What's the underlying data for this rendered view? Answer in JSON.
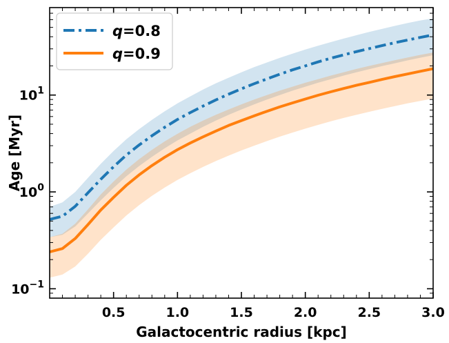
{
  "chart_data": {
    "type": "line",
    "title": "",
    "xlabel": "Galactocentric radius [kpc]",
    "ylabel": "Age [Myr]",
    "xlim": [
      0.0,
      3.0
    ],
    "ylim": [
      0.08,
      80
    ],
    "yscale": "log",
    "grid": false,
    "legend_position": "top-left",
    "x_ticks": [
      {
        "value": 0.5,
        "label": "0.5"
      },
      {
        "value": 1.0,
        "label": "1.0"
      },
      {
        "value": 1.5,
        "label": "1.5"
      },
      {
        "value": 2.0,
        "label": "2.0"
      },
      {
        "value": 2.5,
        "label": "2.5"
      },
      {
        "value": 3.0,
        "label": "3.0"
      }
    ],
    "y_ticks": [
      {
        "value": 0.1,
        "base": "10",
        "exp": "−1"
      },
      {
        "value": 1,
        "base": "10",
        "exp": "0"
      },
      {
        "value": 10,
        "base": "10",
        "exp": "1"
      }
    ],
    "x": [
      0.0,
      0.1,
      0.2,
      0.3,
      0.4,
      0.5,
      0.6,
      0.7,
      0.8,
      0.9,
      1.0,
      1.1,
      1.2,
      1.3,
      1.4,
      1.5,
      1.6,
      1.7,
      1.8,
      1.9,
      2.0,
      2.1,
      2.2,
      2.3,
      2.4,
      2.5,
      2.6,
      2.7,
      2.8,
      2.9,
      3.0
    ],
    "series": [
      {
        "name": "q=0.8",
        "q_symbol": "q",
        "q_value": "=0.8",
        "color": "#1f77b4",
        "band_color": "#1f77b4",
        "line_style": "dashdot",
        "values": [
          0.52,
          0.56,
          0.71,
          0.98,
          1.35,
          1.82,
          2.4,
          3.05,
          3.8,
          4.65,
          5.6,
          6.6,
          7.7,
          8.9,
          10.2,
          11.6,
          13.1,
          14.7,
          16.4,
          18.2,
          20.0,
          22.0,
          24.0,
          26.0,
          28.1,
          30.2,
          32.4,
          34.7,
          37.0,
          39.4,
          41.8
        ],
        "upper": [
          0.7,
          0.78,
          1.0,
          1.4,
          1.95,
          2.65,
          3.5,
          4.45,
          5.55,
          6.8,
          8.2,
          9.7,
          11.4,
          13.2,
          15.1,
          17.2,
          19.4,
          21.7,
          24.2,
          26.8,
          29.5,
          32.3,
          35.2,
          38.3,
          41.5,
          44.8,
          48.2,
          51.8,
          55.4,
          59.0,
          62.0
        ],
        "lower": [
          0.34,
          0.36,
          0.44,
          0.6,
          0.82,
          1.1,
          1.45,
          1.85,
          2.3,
          2.82,
          3.4,
          4.0,
          4.7,
          5.45,
          6.25,
          7.1,
          8.0,
          9.0,
          10.0,
          11.1,
          12.2,
          13.4,
          14.6,
          15.9,
          17.2,
          18.5,
          19.9,
          21.3,
          22.8,
          24.3,
          25.8
        ]
      },
      {
        "name": "q=0.9",
        "q_symbol": "q",
        "q_value": "=0.9",
        "color": "#ff7f0e",
        "band_color": "#ff7f0e",
        "line_style": "solid",
        "values": [
          0.24,
          0.26,
          0.33,
          0.46,
          0.65,
          0.88,
          1.17,
          1.5,
          1.87,
          2.28,
          2.73,
          3.2,
          3.7,
          4.25,
          4.85,
          5.45,
          6.1,
          6.8,
          7.55,
          8.3,
          9.1,
          9.95,
          10.8,
          11.7,
          12.6,
          13.5,
          14.5,
          15.5,
          16.5,
          17.6,
          18.7
        ],
        "upper": [
          0.34,
          0.37,
          0.47,
          0.66,
          0.94,
          1.28,
          1.7,
          2.18,
          2.72,
          3.32,
          3.98,
          4.7,
          5.45,
          6.25,
          7.1,
          8.0,
          9.0,
          10.0,
          11.1,
          12.2,
          13.4,
          14.6,
          15.9,
          17.2,
          18.6,
          20.0,
          21.4,
          22.9,
          24.4,
          26.0,
          27.5
        ],
        "lower": [
          0.13,
          0.14,
          0.17,
          0.23,
          0.32,
          0.43,
          0.57,
          0.73,
          0.91,
          1.11,
          1.33,
          1.56,
          1.81,
          2.08,
          2.37,
          2.68,
          3.0,
          3.35,
          3.72,
          4.1,
          4.5,
          4.92,
          5.36,
          5.8,
          6.25,
          6.72,
          7.2,
          7.7,
          8.2,
          8.7,
          9.2
        ]
      }
    ]
  }
}
